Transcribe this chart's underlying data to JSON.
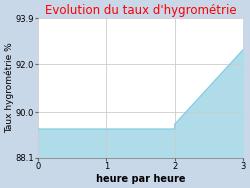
{
  "title": "Evolution du taux d'hygrométrie",
  "title_color": "#ff0000",
  "xlabel": "heure par heure",
  "ylabel": "Taux hygrométrie %",
  "background_color": "#c8d8e8",
  "plot_background_color": "#ffffff",
  "line_color": "#7acce0",
  "fill_color": "#b0dcea",
  "x_data": [
    0,
    2,
    2,
    3
  ],
  "y_data": [
    89.3,
    89.3,
    89.5,
    92.6
  ],
  "xlim": [
    0,
    3
  ],
  "ylim": [
    88.1,
    93.9
  ],
  "yticks": [
    88.1,
    90.0,
    92.0,
    93.9
  ],
  "xticks": [
    0,
    1,
    2,
    3
  ],
  "grid_color": "#cccccc",
  "title_fontsize": 8.5,
  "label_fontsize": 6.5,
  "tick_fontsize": 6,
  "xlabel_fontsize": 7,
  "xlabel_fontweight": "bold"
}
